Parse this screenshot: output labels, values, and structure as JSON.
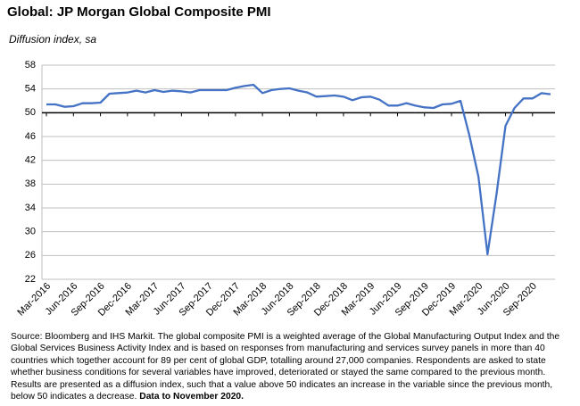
{
  "chart_data": {
    "type": "line",
    "title": "Global: JP Morgan Global Composite PMI",
    "subtitle": "Diffusion index, sa",
    "categories": [
      "Mar-2016",
      null,
      null,
      "Jun-2016",
      null,
      null,
      "Sep-2016",
      null,
      null,
      "Dec-2016",
      null,
      null,
      "Mar-2017",
      null,
      null,
      "Jun-2017",
      null,
      null,
      "Sep-2017",
      null,
      null,
      "Dec-2017",
      null,
      null,
      "Mar-2018",
      null,
      null,
      "Jun-2018",
      null,
      null,
      "Sep-2018",
      null,
      null,
      "Dec-2018",
      null,
      null,
      "Mar-2019",
      null,
      null,
      "Jun-2019",
      null,
      null,
      "Sep-2019",
      null,
      null,
      "Dec-2019",
      null,
      null,
      "Mar-2020",
      null,
      null,
      "Jun-2020",
      null,
      null,
      "Sep-2020",
      null,
      null
    ],
    "series": [
      {
        "name": "Global composite PMI",
        "color": "#4472c4",
        "values": [
          51.4,
          51.4,
          51.0,
          51.1,
          51.6,
          51.6,
          51.7,
          53.2,
          53.3,
          53.4,
          53.7,
          53.4,
          53.8,
          53.5,
          53.7,
          53.6,
          53.4,
          53.8,
          53.8,
          53.8,
          53.8,
          54.2,
          54.5,
          54.7,
          53.3,
          53.8,
          54.0,
          54.1,
          53.7,
          53.4,
          52.7,
          52.8,
          52.9,
          52.7,
          52.1,
          52.6,
          52.7,
          52.2,
          51.2,
          51.2,
          51.6,
          51.2,
          50.9,
          50.8,
          51.4,
          51.5,
          52.0,
          46.1,
          39.2,
          26.2,
          36.3,
          47.8,
          50.8,
          52.4,
          52.4,
          53.3,
          53.1
        ]
      }
    ],
    "ylim": [
      22,
      58
    ],
    "yticks": [
      22,
      26,
      30,
      34,
      38,
      42,
      46,
      50,
      54,
      58
    ],
    "x_axis_at": 50,
    "grid": true,
    "source": "Source: Bloomberg and IHS Markit.  The global composite PMI is a weighted average of the Global Manufacturing Output Index and the Global Services Business Activity Index and is based on responses from manufacturing and services survey panels in more than  40 countries which together account for 89 per cent of global GDP, totalling around 27,000 companies. Respondents are asked to state whether business conditions for several variables have improved, deteriorated or stayed the same compared to the previous month. Results are presented as a diffusion index,  such that a value above 50 indicates an increase in the variable since the previous month, below 50 indicates a decrease.",
    "source_bold": "Data to November 2020."
  }
}
